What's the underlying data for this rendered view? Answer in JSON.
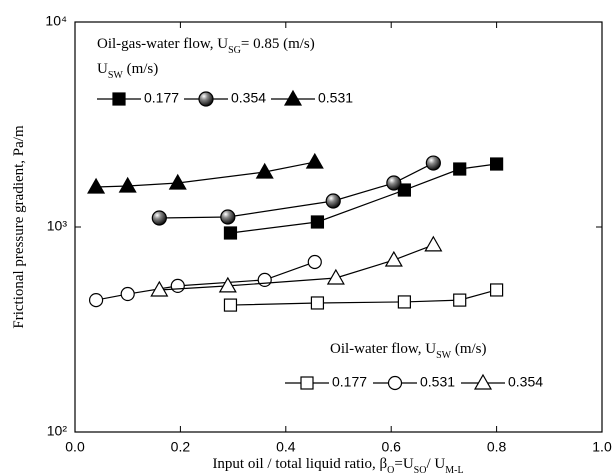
{
  "chart_data": {
    "type": "line",
    "y_label": [
      "Frictional  pressure gradient, Pa/m"
    ],
    "x_label": [
      "Input oil / total liquid ratio, β",
      "O",
      "=U",
      "SO",
      "/ U",
      "M-L"
    ],
    "annotation": [
      "Oil-gas-water flow,  U",
      "SG",
      "= 0.85 (m/s)"
    ],
    "legends": [
      {
        "title": [
          "U",
          "SW",
          " (m/s)"
        ]
      },
      {
        "title": [
          "Oil-water flow,  U",
          "SW",
          " (m/s)"
        ]
      }
    ],
    "xlim": [
      0,
      1.0
    ],
    "xticks": [
      {
        "value": 0,
        "label": "0.0"
      },
      0.2,
      0.4,
      0.6,
      0.8,
      {
        "value": 1.0,
        "label": "1.0"
      }
    ],
    "ylim": [
      100,
      10000
    ],
    "yticks": [
      {
        "value": 100,
        "label": "10²"
      },
      {
        "value": 1000,
        "label": "10³"
      },
      {
        "value": 10000,
        "label": "10⁴"
      }
    ],
    "log_y": true,
    "series": [
      {
        "name": "0.177",
        "legend": 0,
        "marker": "square",
        "filled": true,
        "color": "#000000",
        "x": [
          0.295,
          0.46,
          0.625,
          0.73,
          0.8
        ],
        "values": [
          935,
          1058,
          1515,
          1918,
          2029
        ]
      },
      {
        "name": "0.354",
        "legend": 0,
        "marker": "ball",
        "filled": true,
        "color": "#000000",
        "x": [
          0.16,
          0.29,
          0.49,
          0.605,
          0.68
        ],
        "values": [
          1106,
          1119,
          1339,
          1639,
          2051
        ]
      },
      {
        "name": "0.531",
        "legend": 0,
        "marker": "triangle",
        "filled": true,
        "color": "#000000",
        "x": [
          0.04,
          0.1,
          0.195,
          0.36,
          0.455
        ],
        "values": [
          1567,
          1585,
          1639,
          1855,
          2074
        ]
      },
      {
        "name": "0.177",
        "legend": 1,
        "marker": "square",
        "filled": false,
        "color": "#000000",
        "x": [
          0.295,
          0.46,
          0.625,
          0.73,
          0.8
        ],
        "values": [
          416,
          426,
          431,
          440,
          493
        ]
      },
      {
        "name": "0.531",
        "legend": 1,
        "marker": "circle",
        "filled": false,
        "color": "#000000",
        "x": [
          0.04,
          0.1,
          0.195,
          0.36,
          0.455
        ],
        "values": [
          440,
          471,
          516,
          552,
          675
        ]
      },
      {
        "name": "0.354",
        "legend": 1,
        "marker": "triangle",
        "filled": false,
        "color": "#000000",
        "x": [
          0.16,
          0.29,
          0.495,
          0.605,
          0.68
        ],
        "values": [
          493,
          516,
          564,
          690,
          818
        ]
      }
    ]
  }
}
